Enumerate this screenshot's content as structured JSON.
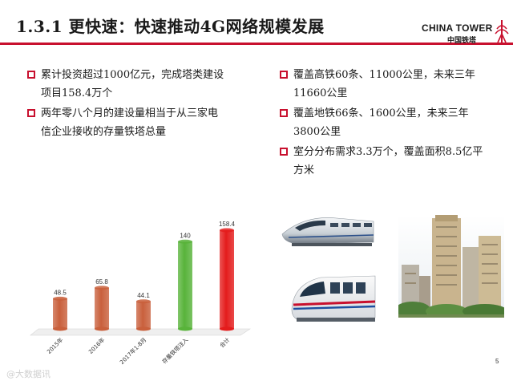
{
  "slide": {
    "title": "1.3.1 更快速：快速推动4G网络规模发展",
    "page_number": "5",
    "accent_color": "#c8102e"
  },
  "logo": {
    "english": "CHINA TOWER",
    "chinese": "中国铁塔"
  },
  "bullets_left": [
    {
      "lines": [
        "累计投资超过1000亿元，完成塔类建设",
        "项目158.4万个"
      ]
    },
    {
      "lines": [
        "两年零八个月的建设量相当于从三家电",
        "信企业接收的存量铁塔总量"
      ]
    }
  ],
  "bullets_right": [
    {
      "lines": [
        "覆盖高铁60条、11000公里，未来三年",
        "11660公里"
      ]
    },
    {
      "lines": [
        "覆盖地铁66条、1600公里，未来三年",
        "3800公里"
      ]
    },
    {
      "lines": [
        "室分分布需求3.3万个，覆盖面积8.5亿平",
        "方米"
      ]
    }
  ],
  "chart_data": {
    "type": "bar",
    "categories": [
      "2015年",
      "2016年",
      "2017年1-8月",
      "存量铁塔注入",
      "合计"
    ],
    "values": [
      48.5,
      65.8,
      44.1,
      140,
      158.4
    ],
    "value_labels": [
      "48.5",
      "65.8",
      "44.1",
      "140",
      "158.4"
    ],
    "colors": [
      "#c9603c",
      "#c9603c",
      "#c9603c",
      "#58b33a",
      "#e41c1c"
    ],
    "ylim": [
      0,
      170
    ],
    "grid": false,
    "legend": "none"
  },
  "watermark": "@大数据讯"
}
